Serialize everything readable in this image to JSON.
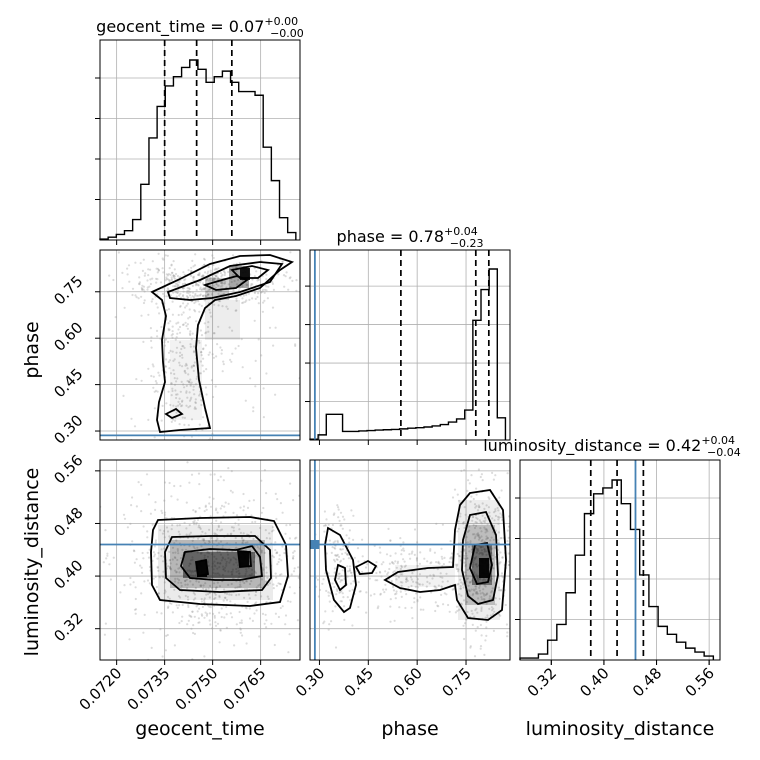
{
  "parameters": [
    {
      "name": "geocent_time",
      "axis_label": "geocent_time",
      "range": [
        0.07148,
        0.07773
      ],
      "ticks": [
        "0.0720",
        "0.0735",
        "0.0750",
        "0.0765"
      ],
      "tick_values": [
        0.072,
        0.0735,
        0.075,
        0.0765
      ],
      "title": {
        "prefix": "geocent_time = 0.07",
        "plus": "+0.00",
        "minus": "−0.00"
      }
    },
    {
      "name": "phase",
      "axis_label": "phase",
      "range": [
        0.271,
        0.885
      ],
      "ticks": [
        "0.30",
        "0.45",
        "0.60",
        "0.75"
      ],
      "tick_values": [
        0.3,
        0.45,
        0.6,
        0.75
      ],
      "title": {
        "prefix": "phase = 0.78",
        "plus": "+0.04",
        "minus": "−0.23"
      }
    },
    {
      "name": "luminosity_distance",
      "axis_label": "luminosity_distance",
      "range": [
        0.2724,
        0.5765
      ],
      "ticks": [
        "0.32",
        "0.40",
        "0.48",
        "0.56"
      ],
      "tick_values": [
        0.32,
        0.4,
        0.48,
        0.56
      ],
      "title": {
        "prefix": "luminosity_distance = 0.42",
        "plus": "+0.04",
        "minus": "−0.04"
      }
    }
  ],
  "colors": {
    "truth": "#4682b4",
    "hist": "#000000",
    "grid": "#b0b0b0",
    "scatter": "#9a9a9a"
  },
  "chart_data": {
    "type": "corner",
    "grid": true,
    "truths": {
      "geocent_time": null,
      "phase": 0.286,
      "luminosity_distance": 0.448
    },
    "histograms": {
      "geocent_time": {
        "bin_edges": [
          0.07148,
          0.071735,
          0.07199,
          0.072245,
          0.0725,
          0.072755,
          0.07301,
          0.073265,
          0.07352,
          0.073775,
          0.07403,
          0.074285,
          0.07454,
          0.074795,
          0.07505,
          0.075305,
          0.07556,
          0.075815,
          0.07607,
          0.076325,
          0.07658,
          0.076835,
          0.07709,
          0.077345,
          0.0776
        ],
        "counts": [
          0.5,
          1.5,
          3,
          5,
          11,
          30,
          55,
          72,
          83,
          88,
          93,
          97,
          92,
          85,
          88,
          91,
          85,
          80,
          80,
          78,
          50,
          32,
          12,
          4
        ],
        "quantiles": [
          0.0735,
          0.0745,
          0.0756
        ]
      },
      "phase": {
        "bin_edges": [
          0.271,
          0.296,
          0.321,
          0.346,
          0.371,
          0.396,
          0.421,
          0.446,
          0.471,
          0.496,
          0.521,
          0.546,
          0.571,
          0.596,
          0.621,
          0.646,
          0.671,
          0.696,
          0.721,
          0.746,
          0.771,
          0.796,
          0.821,
          0.846,
          0.871
        ],
        "counts": [
          0.5,
          3,
          15,
          15,
          5,
          5,
          5.3,
          5.5,
          5.8,
          6,
          6.2,
          6.5,
          6.9,
          7.2,
          7.6,
          8.2,
          9,
          10.5,
          12.3,
          17.5,
          70,
          88,
          100,
          13
        ],
        "quantiles": [
          0.55,
          0.78,
          0.82
        ]
      },
      "luminosity_distance": {
        "bin_edges": [
          0.2724,
          0.2864,
          0.3004,
          0.3144,
          0.3284,
          0.3424,
          0.3564,
          0.3704,
          0.3844,
          0.3984,
          0.4124,
          0.4264,
          0.4404,
          0.4544,
          0.4684,
          0.4824,
          0.4964,
          0.5104,
          0.5244,
          0.5384,
          0.5524,
          0.5664
        ],
        "counts": [
          1,
          1,
          3,
          10,
          18,
          34,
          53,
          74,
          84,
          87,
          91,
          79,
          66,
          43,
          27,
          17,
          13,
          9,
          6,
          4,
          2
        ],
        "quantiles": [
          0.38,
          0.42,
          0.46
        ]
      }
    },
    "contours_2d": {
      "phase_vs_geocent_time": {
        "levels": 3,
        "peak": [
          0.0758,
          0.82
        ]
      },
      "luminosity_distance_vs_geocent_time": {
        "levels": 3,
        "peak": [
          0.0742,
          0.42
        ]
      },
      "luminosity_distance_vs_phase": {
        "levels": 3,
        "peak": [
          0.82,
          0.42
        ]
      }
    }
  }
}
